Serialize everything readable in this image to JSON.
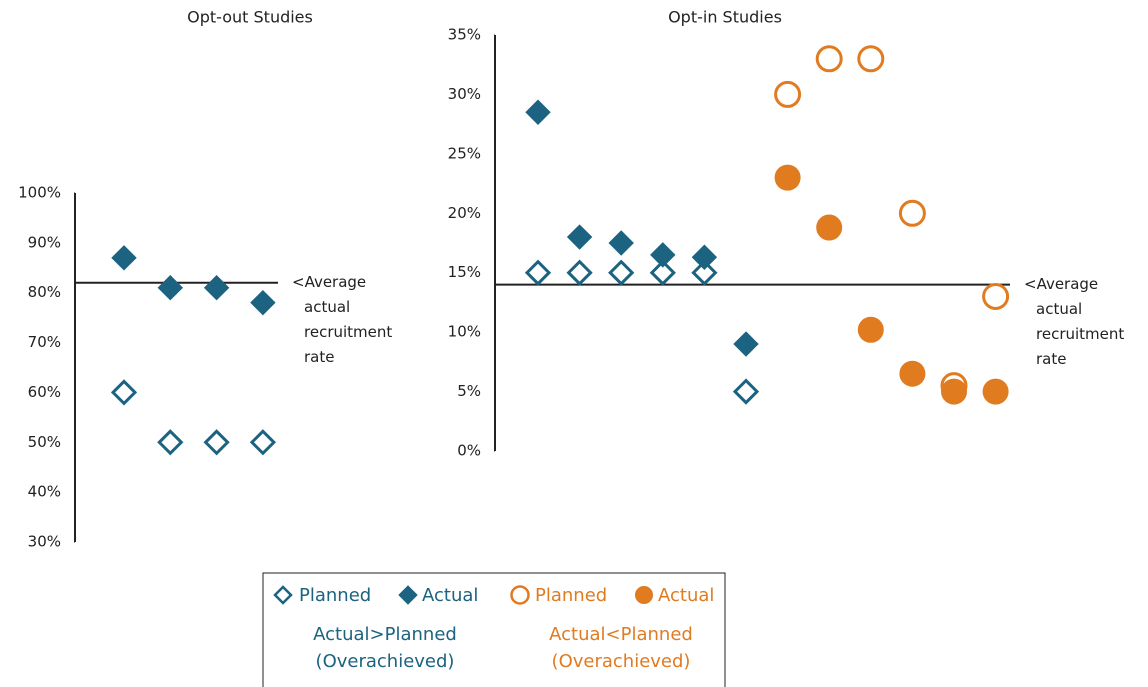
{
  "chart_data": [
    {
      "type": "scatter",
      "title": "Opt-out Studies",
      "categories": [
        null,
        null,
        null,
        null
      ],
      "series": [
        {
          "name": "Planned",
          "color": "#1b6380",
          "marker": "diamond",
          "filled": false,
          "values": [
            60,
            50,
            50,
            50
          ]
        },
        {
          "name": "Actual",
          "color": "#1b6380",
          "marker": "diamond",
          "filled": true,
          "values": [
            87,
            81,
            81,
            78
          ]
        }
      ],
      "ylim": [
        30,
        100
      ],
      "yticks": [
        {
          "value": 30,
          "label": "30%"
        },
        {
          "value": 40,
          "label": "40%"
        },
        {
          "value": 50,
          "label": "50%"
        },
        {
          "value": 60,
          "label": "60%"
        },
        {
          "value": 70,
          "label": "70%"
        },
        {
          "value": 80,
          "label": "80%"
        },
        {
          "value": 90,
          "label": "90%"
        },
        {
          "value": 100,
          "label": "100%"
        }
      ],
      "reference_line": {
        "value": 82,
        "label_lines": [
          "<Average",
          "actual",
          "recruitment",
          "rate"
        ]
      }
    },
    {
      "type": "scatter",
      "title": "Opt-in Studies",
      "categories": [
        null,
        null,
        null,
        null,
        null,
        null,
        null,
        null,
        null,
        null,
        null,
        null
      ],
      "series": [
        {
          "name": "Planned",
          "color": "#1b6380",
          "marker": "diamond",
          "filled": false,
          "values": [
            15,
            15,
            15,
            15,
            15,
            5,
            null,
            null,
            null,
            null,
            null,
            null
          ]
        },
        {
          "name": "Actual",
          "color": "#1b6380",
          "marker": "diamond",
          "filled": true,
          "values": [
            28.5,
            18,
            17.5,
            16.5,
            16.3,
            9,
            null,
            null,
            null,
            null,
            null,
            null
          ]
        },
        {
          "name": "Planned",
          "color": "#e07b20",
          "marker": "circle",
          "filled": false,
          "values": [
            null,
            null,
            null,
            null,
            null,
            null,
            30,
            33,
            33,
            20,
            5.5,
            13
          ]
        },
        {
          "name": "Actual",
          "color": "#e07b20",
          "marker": "circle",
          "filled": true,
          "values": [
            null,
            null,
            null,
            null,
            null,
            null,
            23,
            18.8,
            10.2,
            6.5,
            5,
            5
          ]
        }
      ],
      "ylim": [
        0,
        35
      ],
      "yticks": [
        {
          "value": 0,
          "label": "0%"
        },
        {
          "value": 5,
          "label": "5%"
        },
        {
          "value": 10,
          "label": "10%"
        },
        {
          "value": 15,
          "label": "15%"
        },
        {
          "value": 20,
          "label": "20%"
        },
        {
          "value": 25,
          "label": "25%"
        },
        {
          "value": 30,
          "label": "30%"
        },
        {
          "value": 35,
          "label": "35%"
        }
      ],
      "reference_line": {
        "value": 14,
        "label_lines": [
          "<Average",
          "actual",
          "recruitment",
          "rate"
        ]
      }
    }
  ],
  "legend_notes": [
    {
      "lines": [
        "Actual>Planned",
        "(Overachieved)"
      ],
      "color": "#1b6380"
    },
    {
      "lines": [
        "Actual<Planned",
        "(Overachieved)"
      ],
      "color": "#e07b20"
    }
  ]
}
